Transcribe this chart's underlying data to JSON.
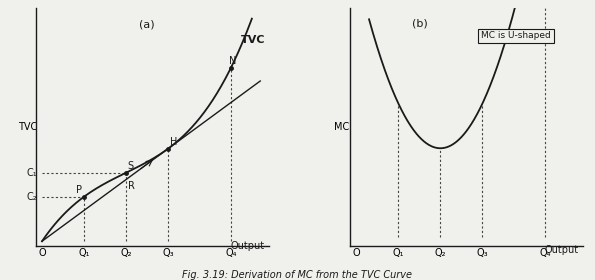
{
  "fig_title": "Fig. 3.19: Derivation of MC from the TVC Curve",
  "panel_a_label": "(a)",
  "panel_b_label": "(b)",
  "ylabel_a": "TVC",
  "ylabel_b": "MC",
  "xlabel_a": "Output",
  "xlabel_b": "Output",
  "tvc_label": "TVC",
  "mc_label": "MC",
  "mc_box_label": "MC is U-shaped",
  "c1_label": "C₁",
  "c2_label": "C₂",
  "background_color": "#f0f0ec",
  "line_color": "#1a1a1a",
  "dashed_color": "#444444",
  "text_color": "#1a1a1a",
  "font_size_labels": 7,
  "font_size_title": 7
}
